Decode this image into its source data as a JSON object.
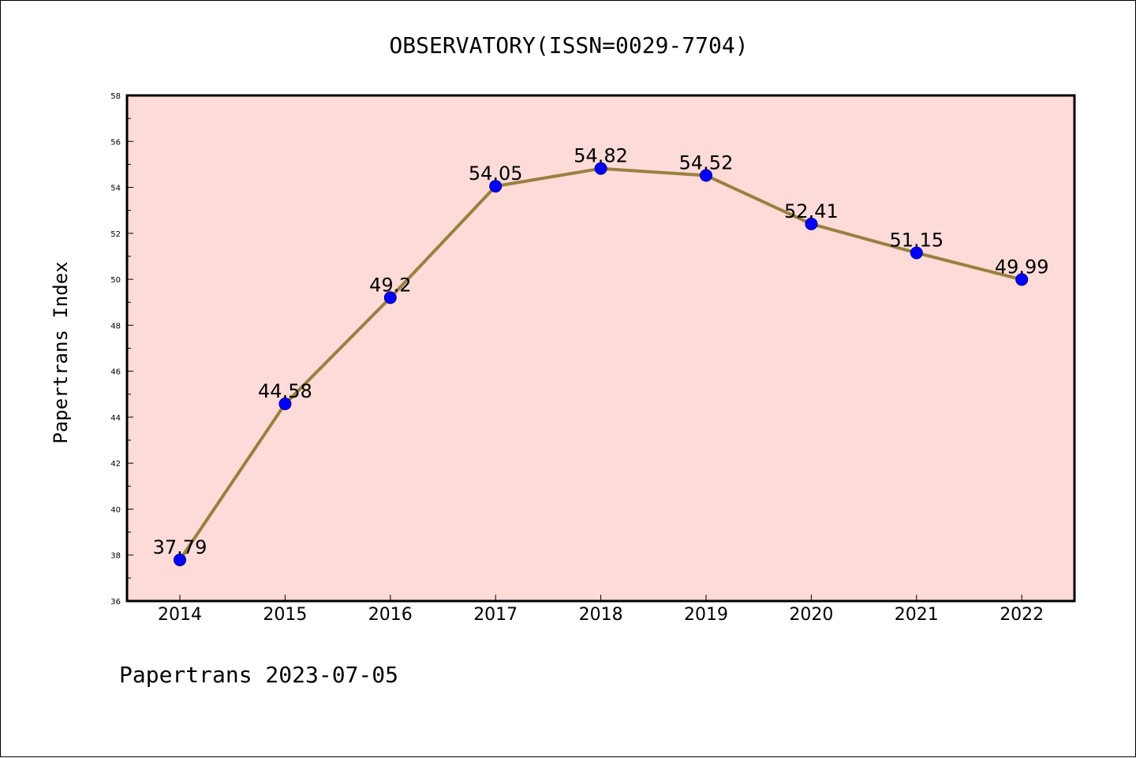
{
  "chart_data": {
    "type": "line",
    "title": "OBSERVATORY(ISSN=0029-7704)",
    "ylabel": "Papertrans Index",
    "xlabel": "",
    "footer": "Papertrans 2023-07-05",
    "categories": [
      "2014",
      "2015",
      "2016",
      "2017",
      "2018",
      "2019",
      "2020",
      "2021",
      "2022"
    ],
    "values": [
      37.79,
      44.58,
      49.2,
      54.05,
      54.82,
      54.52,
      52.41,
      51.15,
      49.99
    ],
    "data_labels": [
      "37.79",
      "44.58",
      "49.2",
      "54.05",
      "54.82",
      "54.52",
      "52.41",
      "51.15",
      "49.99"
    ],
    "ylim": [
      36,
      58
    ],
    "yticks": [
      "36",
      "38",
      "40",
      "42",
      "44",
      "46",
      "48",
      "50",
      "52",
      "54",
      "56",
      "58"
    ],
    "grid": false,
    "colors": {
      "plot_background": "#fddbd8",
      "line": "#9a8040",
      "marker": "#0000ff",
      "marker_edge": "#000080"
    }
  }
}
